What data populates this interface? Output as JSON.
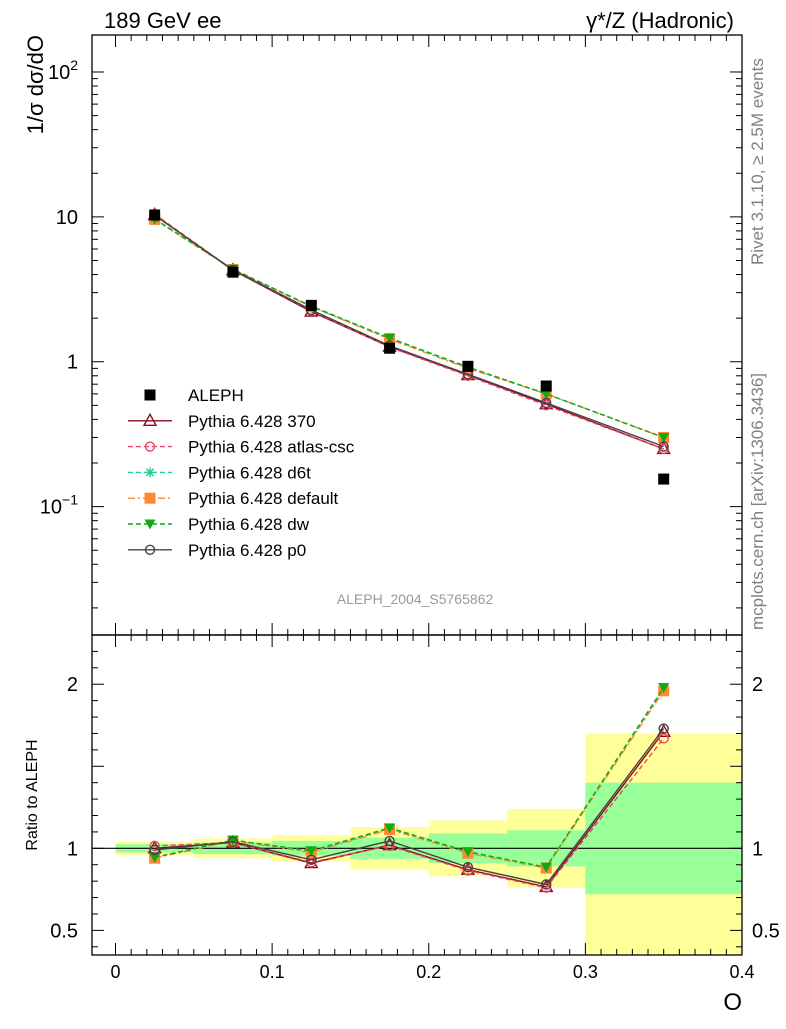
{
  "header": {
    "left_title": "189 GeV ee",
    "right_title": "γ*/Z (Hadronic)"
  },
  "side_notes": {
    "rivet": "Rivet 3.1.10, ≥ 2.5M events",
    "url": "mcplots.cern.ch [arXiv:1306.3436]"
  },
  "watermark": "ALEPH_2004_S5765862",
  "colors": {
    "band_outer": "#ffff99",
    "band_inner": "#99ff99",
    "data": "#000000",
    "p370": "#8b0a1f",
    "atlascsc": "#ee4466",
    "d6t": "#22cc99",
    "default": "#ff8833",
    "dw": "#11aa11",
    "p0": "#444444"
  },
  "chart_data": [
    {
      "type": "scatter",
      "panel": "main",
      "ylabel": "1/σ  dσ/dO",
      "yscale": "log",
      "ylim": [
        0.013,
        180
      ],
      "xlim": [
        -0.015,
        0.4
      ],
      "y_ticks": [
        {
          "value": 100,
          "label": "10",
          "sup": "2"
        },
        {
          "value": 10,
          "label": "10",
          "sup": ""
        },
        {
          "value": 1,
          "label": "1",
          "sup": ""
        },
        {
          "value": 0.1,
          "label": "10",
          "sup": "−1"
        }
      ],
      "x": [
        0.025,
        0.075,
        0.125,
        0.175,
        0.225,
        0.275,
        0.35
      ],
      "data": {
        "name": "ALEPH",
        "values": [
          10.3,
          4.15,
          2.45,
          1.24,
          0.93,
          0.68,
          0.155
        ]
      },
      "series": [
        {
          "name": "Pythia 6.428 370",
          "key": "p370",
          "marker": "triangle-open",
          "dash": "",
          "values": [
            10.3,
            4.28,
            2.22,
            1.27,
            0.81,
            0.51,
            0.25
          ]
        },
        {
          "name": "Pythia 6.428 atlas-csc",
          "key": "atlascsc",
          "marker": "circle-open",
          "dash": "5,3",
          "values": [
            10.45,
            4.3,
            2.25,
            1.26,
            0.8,
            0.5,
            0.25
          ]
        },
        {
          "name": "Pythia 6.428 d6t",
          "key": "d6t",
          "marker": "star",
          "dash": "5,3",
          "values": [
            9.7,
            4.35,
            2.4,
            1.45,
            0.91,
            0.6,
            0.3
          ]
        },
        {
          "name": "Pythia 6.428 default",
          "key": "default",
          "marker": "square",
          "dash": "7,3,2,3",
          "values": [
            9.6,
            4.33,
            2.4,
            1.43,
            0.9,
            0.6,
            0.3
          ]
        },
        {
          "name": "Pythia 6.428 dw",
          "key": "dw",
          "marker": "triangle-down",
          "dash": "5,3",
          "values": [
            9.65,
            4.35,
            2.42,
            1.46,
            0.92,
            0.6,
            0.3
          ]
        },
        {
          "name": "Pythia 6.428 p0",
          "key": "p0",
          "marker": "circle-open",
          "dash": "",
          "values": [
            10.25,
            4.3,
            2.28,
            1.29,
            0.82,
            0.52,
            0.26
          ]
        }
      ],
      "legend_placement": "middle-left"
    },
    {
      "type": "line",
      "panel": "ratio",
      "ylabel": "Ratio to ALEPH",
      "xlabel": "O",
      "xlim": [
        -0.015,
        0.4
      ],
      "ylim": [
        0.35,
        2.3
      ],
      "x_ticks": [
        {
          "value": 0,
          "label": "0"
        },
        {
          "value": 0.1,
          "label": "0.1"
        },
        {
          "value": 0.2,
          "label": "0.2"
        },
        {
          "value": 0.3,
          "label": "0.3"
        },
        {
          "value": 0.4,
          "label": "0.4"
        }
      ],
      "y_ticks": [
        {
          "value": 2,
          "label": "2"
        },
        {
          "value": 1,
          "label": "1"
        },
        {
          "value": 0.5,
          "label": "0.5"
        }
      ],
      "reference": 1,
      "bands": [
        {
          "x0": 0.0,
          "x1": 0.05,
          "inner": [
            0.975,
            1.025
          ],
          "outer": [
            0.96,
            1.04
          ]
        },
        {
          "x0": 0.05,
          "x1": 0.1,
          "inner": [
            0.965,
            1.035
          ],
          "outer": [
            0.94,
            1.06
          ]
        },
        {
          "x0": 0.1,
          "x1": 0.15,
          "inner": [
            0.955,
            1.045
          ],
          "outer": [
            0.92,
            1.08
          ]
        },
        {
          "x0": 0.15,
          "x1": 0.2,
          "inner": [
            0.935,
            1.065
          ],
          "outer": [
            0.87,
            1.13
          ]
        },
        {
          "x0": 0.2,
          "x1": 0.25,
          "inner": [
            0.91,
            1.09
          ],
          "outer": [
            0.83,
            1.17
          ]
        },
        {
          "x0": 0.25,
          "x1": 0.3,
          "inner": [
            0.89,
            1.11
          ],
          "outer": [
            0.76,
            1.24
          ]
        },
        {
          "x0": 0.3,
          "x1": 0.4,
          "inner": [
            0.72,
            1.4
          ],
          "outer": [
            0.35,
            1.7
          ]
        }
      ],
      "x": [
        0.025,
        0.075,
        0.125,
        0.175,
        0.225,
        0.275,
        0.35
      ],
      "series": [
        {
          "name": "Pythia 6.428 370",
          "key": "p370",
          "marker": "triangle-open",
          "dash": "",
          "values": [
            1.0,
            1.035,
            0.91,
            1.02,
            0.87,
            0.765,
            1.71
          ]
        },
        {
          "name": "Pythia 6.428 atlas-csc",
          "key": "atlascsc",
          "marker": "circle-open",
          "dash": "5,3",
          "values": [
            1.015,
            1.035,
            0.915,
            1.015,
            0.865,
            0.76,
            1.67
          ]
        },
        {
          "name": "Pythia 6.428 d6t",
          "key": "d6t",
          "marker": "star",
          "dash": "5,3",
          "values": [
            0.945,
            1.05,
            0.98,
            1.12,
            0.975,
            0.885,
            1.97
          ]
        },
        {
          "name": "Pythia 6.428 default",
          "key": "default",
          "marker": "square",
          "dash": "7,3,2,3",
          "values": [
            0.94,
            1.045,
            0.975,
            1.115,
            0.97,
            0.88,
            1.96
          ]
        },
        {
          "name": "Pythia 6.428 dw",
          "key": "dw",
          "marker": "triangle-down",
          "dash": "5,3",
          "values": [
            0.945,
            1.05,
            0.985,
            1.125,
            0.98,
            0.885,
            1.98
          ]
        },
        {
          "name": "Pythia 6.428 p0",
          "key": "p0",
          "marker": "circle-open",
          "dash": "",
          "values": [
            0.99,
            1.04,
            0.93,
            1.045,
            0.885,
            0.78,
            1.73
          ]
        }
      ]
    }
  ]
}
